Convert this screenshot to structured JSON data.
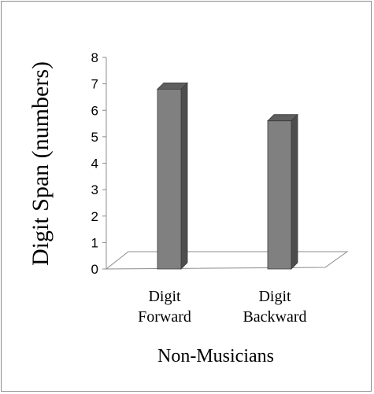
{
  "chart_data": {
    "type": "bar",
    "style": "3d-column",
    "categories": [
      [
        "Digit",
        "Forward"
      ],
      [
        "Digit",
        "Backward"
      ]
    ],
    "values": [
      6.8,
      5.6
    ],
    "ylabel": "Digit Span (numbers)",
    "xlabel": "Non-Musicians",
    "ylim": [
      0,
      8
    ],
    "yticks": [
      0,
      1,
      2,
      3,
      4,
      5,
      6,
      7,
      8
    ],
    "grid": false,
    "legend": "none",
    "colors": {
      "bar_front": "#808080",
      "bar_side": "#4d4d4d",
      "bar_top": "#5e5e5e",
      "axis": "#8c8c8c"
    }
  }
}
